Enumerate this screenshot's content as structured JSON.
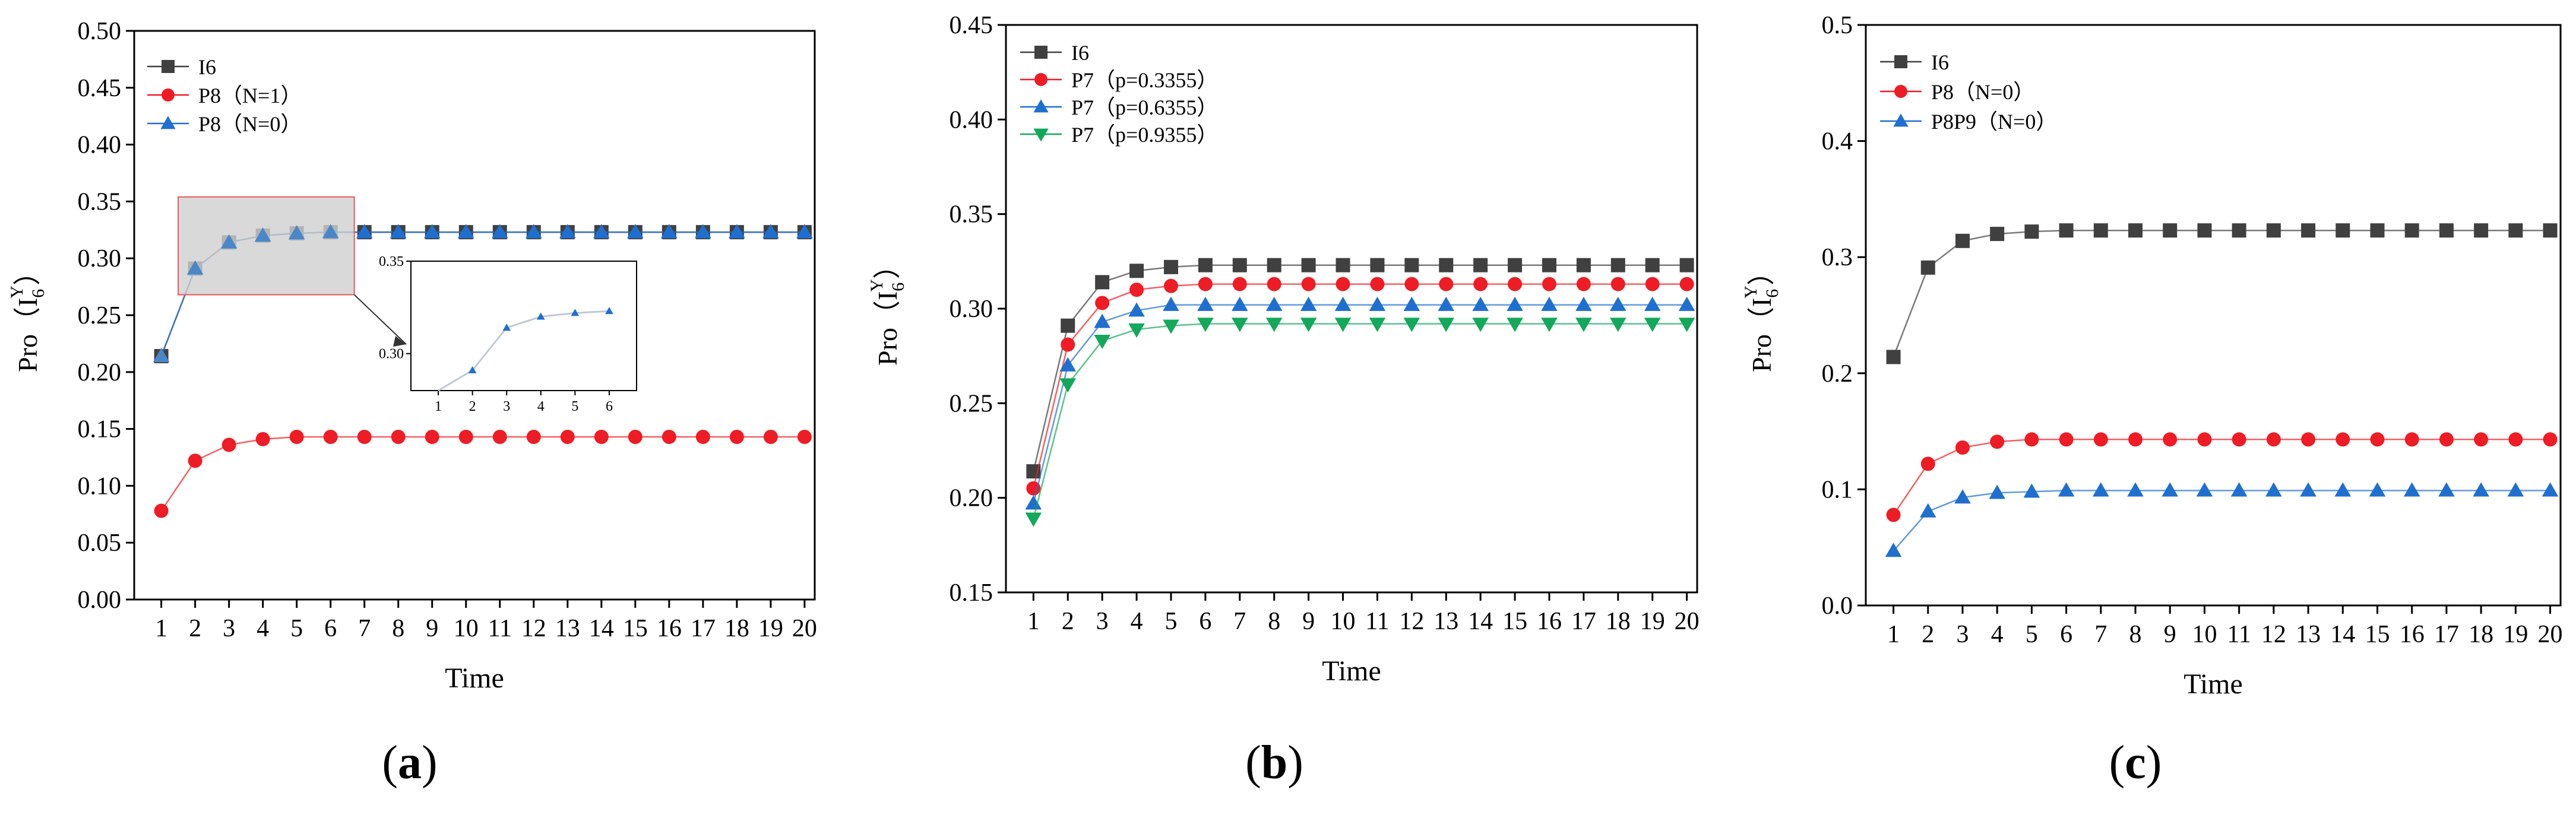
{
  "chart_data": [
    {
      "type": "line",
      "panel": "a",
      "caption_open": "(",
      "caption_letter": "a",
      "caption_close": ")",
      "xlabel": "Time",
      "ylabel_prefix": "Pro（I",
      "ylabel_sub": "6",
      "ylabel_sup": "Y",
      "ylabel_suffix": "）",
      "x": [
        1,
        2,
        3,
        4,
        5,
        6,
        7,
        8,
        9,
        10,
        11,
        12,
        13,
        14,
        15,
        16,
        17,
        18,
        19,
        20
      ],
      "ylim": [
        0.0,
        0.5
      ],
      "yticks": [
        "0.00",
        "0.05",
        "0.10",
        "0.15",
        "0.20",
        "0.25",
        "0.30",
        "0.35",
        "0.40",
        "0.45",
        "0.50"
      ],
      "series": [
        {
          "name": "I6",
          "color": "#404040",
          "marker": "square",
          "values": [
            0.214,
            0.291,
            0.314,
            0.32,
            0.322,
            0.323,
            0.323,
            0.323,
            0.323,
            0.323,
            0.323,
            0.323,
            0.323,
            0.323,
            0.323,
            0.323,
            0.323,
            0.323,
            0.323,
            0.323
          ]
        },
        {
          "name": "P8（N=1）",
          "color": "#ee1c25",
          "marker": "circle",
          "values": [
            0.078,
            0.122,
            0.136,
            0.141,
            0.143,
            0.143,
            0.143,
            0.143,
            0.143,
            0.143,
            0.143,
            0.143,
            0.143,
            0.143,
            0.143,
            0.143,
            0.143,
            0.143,
            0.143,
            0.143
          ]
        },
        {
          "name": "P8（N=0）",
          "color": "#1f6fd0",
          "marker": "triangle-up",
          "values": [
            0.214,
            0.291,
            0.314,
            0.32,
            0.322,
            0.323,
            0.323,
            0.323,
            0.323,
            0.323,
            0.323,
            0.323,
            0.323,
            0.323,
            0.323,
            0.323,
            0.323,
            0.323,
            0.323,
            0.323
          ]
        }
      ],
      "inset": {
        "x_range": [
          1,
          6
        ],
        "xticks": [
          "1",
          "2",
          "3",
          "4",
          "5",
          "6"
        ],
        "ylim": [
          0.28,
          0.35
        ],
        "yticks": [
          "0.30",
          "0.35"
        ]
      }
    },
    {
      "type": "line",
      "panel": "b",
      "caption_open": "(",
      "caption_letter": "b",
      "caption_close": ")",
      "xlabel": "Time",
      "ylabel_prefix": "Pro（I",
      "ylabel_sub": "6",
      "ylabel_sup": "Y",
      "ylabel_suffix": "）",
      "x": [
        1,
        2,
        3,
        4,
        5,
        6,
        7,
        8,
        9,
        10,
        11,
        12,
        13,
        14,
        15,
        16,
        17,
        18,
        19,
        20
      ],
      "ylim": [
        0.15,
        0.45
      ],
      "yticks": [
        "0.15",
        "0.20",
        "0.25",
        "0.30",
        "0.35",
        "0.40",
        "0.45"
      ],
      "series": [
        {
          "name": "I6",
          "color": "#404040",
          "marker": "square",
          "values": [
            0.214,
            0.291,
            0.314,
            0.32,
            0.322,
            0.323,
            0.323,
            0.323,
            0.323,
            0.323,
            0.323,
            0.323,
            0.323,
            0.323,
            0.323,
            0.323,
            0.323,
            0.323,
            0.323,
            0.323
          ]
        },
        {
          "name": "P7（p=0.3355）",
          "color": "#ee1c25",
          "marker": "circle",
          "values": [
            0.205,
            0.281,
            0.303,
            0.31,
            0.312,
            0.313,
            0.313,
            0.313,
            0.313,
            0.313,
            0.313,
            0.313,
            0.313,
            0.313,
            0.313,
            0.313,
            0.313,
            0.313,
            0.313,
            0.313
          ]
        },
        {
          "name": "P7（p=0.6355）",
          "color": "#1f6fd0",
          "marker": "triangle-up",
          "values": [
            0.197,
            0.27,
            0.293,
            0.299,
            0.302,
            0.302,
            0.302,
            0.302,
            0.302,
            0.302,
            0.302,
            0.302,
            0.302,
            0.302,
            0.302,
            0.302,
            0.302,
            0.302,
            0.302,
            0.302
          ]
        },
        {
          "name": "P7（p=0.9355）",
          "color": "#13a85a",
          "marker": "triangle-down",
          "values": [
            0.189,
            0.26,
            0.283,
            0.289,
            0.291,
            0.292,
            0.292,
            0.292,
            0.292,
            0.292,
            0.292,
            0.292,
            0.292,
            0.292,
            0.292,
            0.292,
            0.292,
            0.292,
            0.292,
            0.292
          ]
        }
      ]
    },
    {
      "type": "line",
      "panel": "c",
      "caption_open": "(",
      "caption_letter": "c",
      "caption_close": ")",
      "xlabel": "Time",
      "ylabel_prefix": "Pro（I",
      "ylabel_sub": "6",
      "ylabel_sup": "Y",
      "ylabel_suffix": "）",
      "x": [
        1,
        2,
        3,
        4,
        5,
        6,
        7,
        8,
        9,
        10,
        11,
        12,
        13,
        14,
        15,
        16,
        17,
        18,
        19,
        20
      ],
      "ylim": [
        0.0,
        0.5
      ],
      "yticks": [
        "0.0",
        "0.1",
        "0.2",
        "0.3",
        "0.4",
        "0.5"
      ],
      "series": [
        {
          "name": "I6",
          "color": "#404040",
          "marker": "square",
          "values": [
            0.214,
            0.291,
            0.314,
            0.32,
            0.322,
            0.323,
            0.323,
            0.323,
            0.323,
            0.323,
            0.323,
            0.323,
            0.323,
            0.323,
            0.323,
            0.323,
            0.323,
            0.323,
            0.323,
            0.323
          ]
        },
        {
          "name": "P8（N=0）",
          "color": "#ee1c25",
          "marker": "circle",
          "values": [
            0.078,
            0.122,
            0.136,
            0.141,
            0.143,
            0.143,
            0.143,
            0.143,
            0.143,
            0.143,
            0.143,
            0.143,
            0.143,
            0.143,
            0.143,
            0.143,
            0.143,
            0.143,
            0.143,
            0.143
          ]
        },
        {
          "name": "P8P9（N=0）",
          "color": "#1f6fd0",
          "marker": "triangle-up",
          "values": [
            0.047,
            0.081,
            0.093,
            0.097,
            0.098,
            0.099,
            0.099,
            0.099,
            0.099,
            0.099,
            0.099,
            0.099,
            0.099,
            0.099,
            0.099,
            0.099,
            0.099,
            0.099,
            0.099,
            0.099
          ]
        }
      ]
    }
  ]
}
